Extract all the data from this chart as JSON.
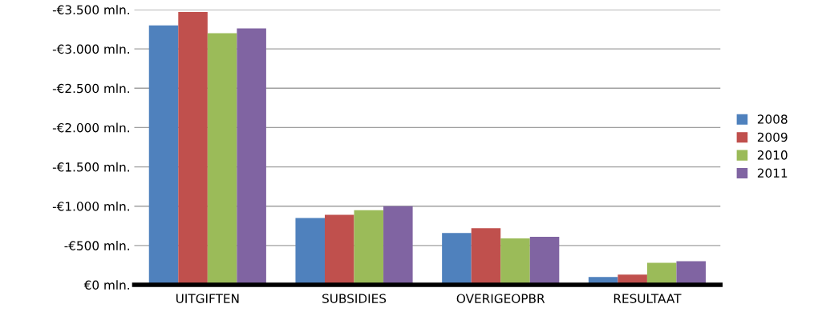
{
  "chart_data": {
    "type": "bar",
    "categories": [
      "UITGIFTEN",
      "SUBSIDIES",
      "OVERIGEOPBR",
      "RESULTAAT"
    ],
    "series": [
      {
        "name": "2008",
        "color": "#4f81bd",
        "values": [
          -3300,
          -850,
          -660,
          -100
        ]
      },
      {
        "name": "2009",
        "color": "#c0504d",
        "values": [
          -3470,
          -890,
          -720,
          -130
        ]
      },
      {
        "name": "2010",
        "color": "#9bbb59",
        "values": [
          -3200,
          -950,
          -590,
          -280
        ]
      },
      {
        "name": "2011",
        "color": "#8064a2",
        "values": [
          -3260,
          -1000,
          -610,
          -300
        ]
      }
    ],
    "ylim": [
      0,
      -3500
    ],
    "yticks": [
      {
        "value": 0,
        "label": "€0 mln."
      },
      {
        "value": -500,
        "label": "-€500 mln."
      },
      {
        "value": -1000,
        "label": "-€1.000 mln."
      },
      {
        "value": -1500,
        "label": "-€1.500 mln."
      },
      {
        "value": -2000,
        "label": "-€2.000 mln."
      },
      {
        "value": -2500,
        "label": "-€2.500 mln."
      },
      {
        "value": -3000,
        "label": "-€3.000 mln."
      },
      {
        "value": -3500,
        "label": "-€3.500 mln."
      }
    ],
    "grid": "y",
    "legend": "right"
  }
}
